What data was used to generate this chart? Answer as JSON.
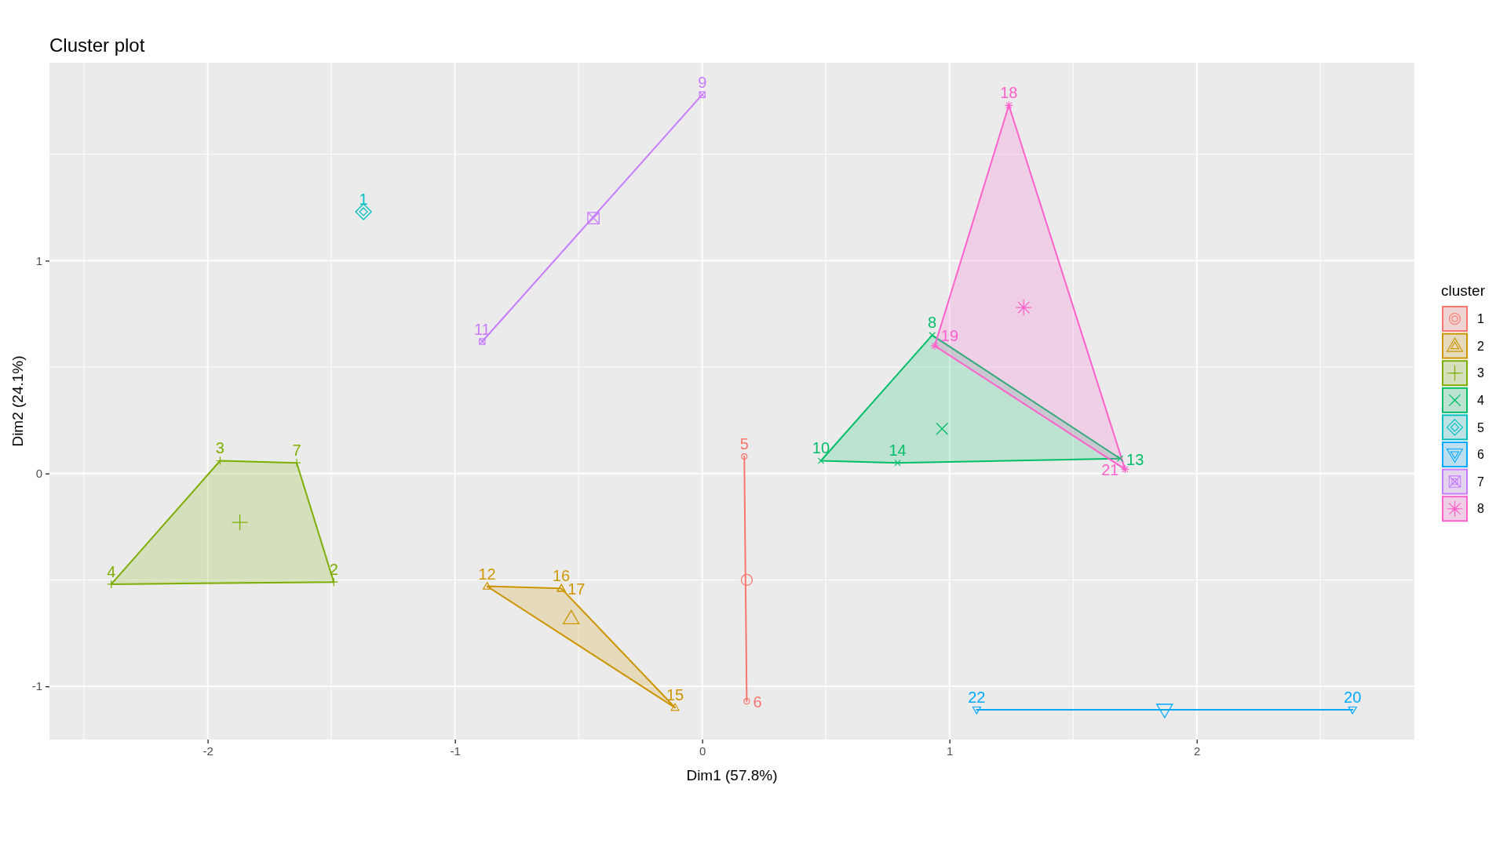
{
  "chart_data": {
    "type": "scatter",
    "title": "Cluster plot",
    "xlabel": "Dim1 (57.8%)",
    "ylabel": "Dim2 (24.1%)",
    "legend_title": "cluster",
    "xlim": [
      -2.64,
      2.88
    ],
    "ylim": [
      -1.25,
      1.93
    ],
    "xticks": [
      -2,
      -1,
      0,
      1,
      2
    ],
    "yticks": [
      -1,
      0,
      1
    ],
    "grid": true,
    "legend": "right",
    "series": [
      {
        "type": "line",
        "color": "#F8766D",
        "x": [
          0.17,
          0.18
        ],
        "values": [
          0.08,
          -1.07
        ]
      },
      {
        "name": "1",
        "color": "#F8766D",
        "marker": "circle",
        "x": [
          0.17,
          0.18
        ],
        "values": [
          0.08,
          -1.07
        ]
      },
      {
        "color": "#F8766D",
        "marker": "circle",
        "x": [
          0.18
        ],
        "values": [
          -0.5
        ]
      },
      {
        "type": "area",
        "color": "#CD9600",
        "x": [
          -0.87,
          -0.57,
          -0.11
        ],
        "values": [
          -0.53,
          -0.54,
          -1.1
        ]
      },
      {
        "name": "2",
        "color": "#CD9600",
        "marker": "triangle",
        "x": [
          -0.87,
          -0.11,
          -0.57,
          -0.57
        ],
        "values": [
          -0.53,
          -1.1,
          -0.54,
          -0.54
        ]
      },
      {
        "color": "#CD9600",
        "marker": "triangle",
        "x": [
          -0.53
        ],
        "values": [
          -0.68
        ]
      },
      {
        "type": "area",
        "color": "#7CAE00",
        "x": [
          -2.39,
          -1.95,
          -1.64,
          -1.49
        ],
        "values": [
          -0.52,
          0.06,
          0.05,
          -0.51
        ]
      },
      {
        "name": "3",
        "color": "#7CAE00",
        "marker": "cross",
        "x": [
          -1.49,
          -1.95,
          -2.39,
          -1.64
        ],
        "values": [
          -0.51,
          0.06,
          -0.52,
          0.05
        ]
      },
      {
        "color": "#7CAE00",
        "marker": "cross",
        "x": [
          -1.87
        ],
        "values": [
          -0.23
        ]
      },
      {
        "type": "area",
        "color": "#00BE67",
        "x": [
          0.48,
          0.93,
          1.69,
          0.79
        ],
        "values": [
          0.06,
          0.65,
          0.07,
          0.05
        ]
      },
      {
        "name": "4",
        "color": "#00BE67",
        "marker": "cross",
        "x": [
          0.93,
          0.48,
          1.69,
          0.79
        ],
        "values": [
          0.65,
          0.06,
          0.07,
          0.05
        ]
      },
      {
        "color": "#00BE67",
        "marker": "cross",
        "x": [
          0.97
        ],
        "values": [
          0.21
        ]
      },
      {
        "name": "5",
        "color": "#00BFC4",
        "marker": "diamond",
        "x": [
          -1.37
        ],
        "values": [
          1.23
        ]
      },
      {
        "color": "#00BFC4",
        "marker": "diamond",
        "x": [
          -1.37
        ],
        "values": [
          1.23
        ]
      },
      {
        "type": "line",
        "color": "#00A9FF",
        "x": [
          1.11,
          2.63
        ],
        "values": [
          -1.11,
          -1.11
        ]
      },
      {
        "name": "6",
        "color": "#00A9FF",
        "marker": "triangle",
        "x": [
          2.63,
          1.11
        ],
        "values": [
          -1.11,
          -1.11
        ]
      },
      {
        "color": "#00A9FF",
        "marker": "triangle",
        "x": [
          1.87
        ],
        "values": [
          -1.11
        ]
      },
      {
        "type": "line",
        "color": "#C77CFF",
        "x": [
          -0.89,
          0.0
        ],
        "values": [
          0.62,
          1.78
        ]
      },
      {
        "name": "7",
        "color": "#C77CFF",
        "marker": "cross",
        "x": [
          0.0,
          -0.89
        ],
        "values": [
          1.78,
          0.62
        ]
      },
      {
        "color": "#C77CFF",
        "marker": "cross",
        "x": [
          -0.44
        ],
        "values": [
          1.2
        ]
      },
      {
        "type": "area",
        "color": "#FF61CC",
        "x": [
          1.24,
          1.71,
          0.94
        ],
        "values": [
          1.73,
          0.02,
          0.6
        ]
      },
      {
        "name": "8",
        "color": "#FF61CC",
        "marker": "cross",
        "x": [
          1.24,
          0.94,
          1.71
        ],
        "values": [
          1.73,
          0.6,
          0.02
        ]
      },
      {
        "color": "#FF61CC",
        "marker": "cross",
        "x": [
          1.3
        ],
        "values": [
          0.78
        ]
      }
    ],
    "annotations": [
      {
        "text": "5",
        "x": 0.17,
        "y": 0.08
      },
      {
        "text": "6",
        "x": 0.18,
        "y": -1.07
      },
      {
        "text": "12",
        "x": -0.87,
        "y": -0.53
      },
      {
        "text": "15",
        "x": -0.11,
        "y": -1.1
      },
      {
        "text": "16",
        "x": -0.57,
        "y": -0.54
      },
      {
        "text": "17",
        "x": -0.57,
        "y": -0.54
      },
      {
        "text": "2",
        "x": -1.49,
        "y": -0.51
      },
      {
        "text": "3",
        "x": -1.95,
        "y": 0.06
      },
      {
        "text": "4",
        "x": -2.39,
        "y": -0.52
      },
      {
        "text": "7",
        "x": -1.64,
        "y": 0.05
      },
      {
        "text": "8",
        "x": 0.93,
        "y": 0.65
      },
      {
        "text": "10",
        "x": 0.48,
        "y": 0.06
      },
      {
        "text": "13",
        "x": 1.69,
        "y": 0.07
      },
      {
        "text": "14",
        "x": 0.79,
        "y": 0.05
      },
      {
        "text": "1",
        "x": -1.37,
        "y": 1.23
      },
      {
        "text": "20",
        "x": 2.63,
        "y": -1.11
      },
      {
        "text": "22",
        "x": 1.11,
        "y": -1.11
      },
      {
        "text": "9",
        "x": 0.0,
        "y": 1.78
      },
      {
        "text": "11",
        "x": -0.89,
        "y": 0.62
      },
      {
        "text": "18",
        "x": 1.24,
        "y": 1.73
      },
      {
        "text": "19",
        "x": 0.94,
        "y": 0.6
      },
      {
        "text": "21",
        "x": 1.71,
        "y": 0.02
      }
    ]
  }
}
